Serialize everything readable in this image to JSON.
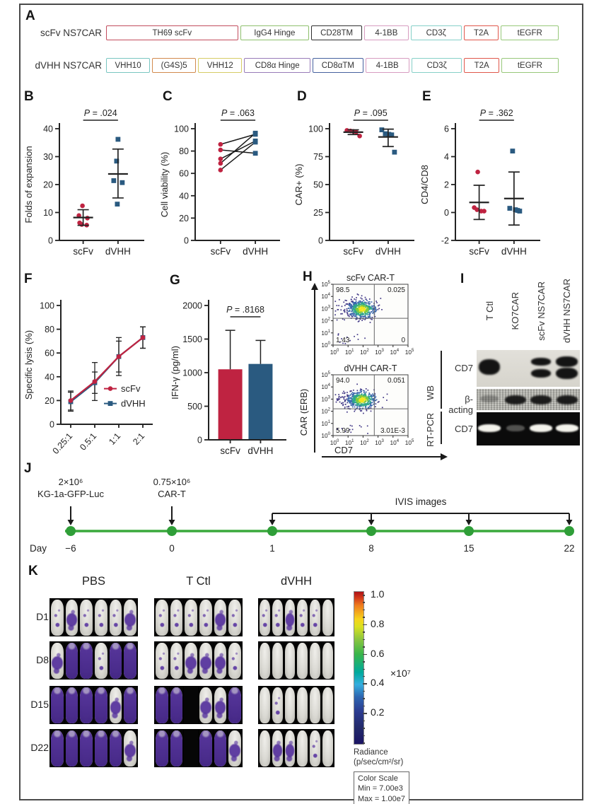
{
  "figure": {
    "panel_labels": {
      "A": "A",
      "B": "B",
      "C": "C",
      "D": "D",
      "E": "E",
      "F": "F",
      "G": "G",
      "H": "H",
      "I": "I",
      "J": "J",
      "K": "K"
    }
  },
  "panelA": {
    "rows": [
      {
        "name": "scFv NS7CAR",
        "segments": [
          {
            "label": "TH69 scFv",
            "color": "#c24d5e",
            "flex": 2.9
          },
          {
            "label": "IgG4 Hinge",
            "color": "#8ebf6d",
            "flex": 1.5
          },
          {
            "label": "CD28TM",
            "color": "#2f2f2f",
            "flex": 1.1
          },
          {
            "label": "4-1BB",
            "color": "#d79cc0",
            "flex": 0.95
          },
          {
            "label": "CD3ζ",
            "color": "#86d0c8",
            "flex": 1.1
          },
          {
            "label": "T2A",
            "color": "#e0574b",
            "flex": 0.75
          },
          {
            "label": "tEGFR",
            "color": "#97c87a",
            "flex": 1.25
          }
        ]
      },
      {
        "name": "dVHH NS7CAR",
        "segments": [
          {
            "label": "VHH10",
            "color": "#79c6c1",
            "flex": 0.95
          },
          {
            "label": "(G4S)5",
            "color": "#d28a4e",
            "flex": 0.95
          },
          {
            "label": "VHH12",
            "color": "#d6cc66",
            "flex": 0.95
          },
          {
            "label": "CD8α Hinge",
            "color": "#977bb8",
            "flex": 1.45
          },
          {
            "label": "CD8αTM",
            "color": "#46619f",
            "flex": 1.1
          },
          {
            "label": "4-1BB",
            "color": "#d79cc0",
            "flex": 0.95
          },
          {
            "label": "CD3ζ",
            "color": "#86d0c8",
            "flex": 1.1
          },
          {
            "label": "T2A",
            "color": "#e0574b",
            "flex": 0.75
          },
          {
            "label": "tEGFR",
            "color": "#97c87a",
            "flex": 1.25
          }
        ]
      }
    ]
  },
  "chart_data": [
    {
      "panel": "B",
      "type": "scatter",
      "ylabel": "Folds of expansion",
      "ylim": [
        0,
        40
      ],
      "yticks": [
        0,
        10,
        20,
        30,
        40
      ],
      "categories": [
        "scFv",
        "dVHH"
      ],
      "p_label": "P = .024",
      "series": [
        {
          "name": "scFv",
          "color": "#bf2341",
          "marker": "circle",
          "values": [
            12.4,
            8.9,
            8.0,
            6.3,
            5.7,
            5.5
          ],
          "mean": 8.2,
          "err": [
            5.4,
            11.0
          ]
        },
        {
          "name": "dVHH",
          "color": "#2a5a80",
          "marker": "square",
          "values": [
            36.2,
            28.4,
            21.4,
            20.7,
            13.0
          ],
          "mean": 23.8,
          "err": [
            15.2,
            32.7
          ]
        }
      ]
    },
    {
      "panel": "C",
      "type": "paired",
      "ylabel": "Cell viability (%)",
      "ylim": [
        0,
        100
      ],
      "yticks": [
        0,
        20,
        40,
        60,
        80,
        100
      ],
      "categories": [
        "scFv",
        "dVHH"
      ],
      "p_label": "P = .063",
      "colors": [
        "#bf2341",
        "#2a5a80"
      ],
      "pairs": [
        [
          86,
          95
        ],
        [
          81,
          78
        ],
        [
          73,
          89
        ],
        [
          69,
          96
        ],
        [
          63,
          88
        ]
      ]
    },
    {
      "panel": "D",
      "type": "scatter",
      "ylabel": "CAR+ (%)",
      "ylim": [
        0,
        100
      ],
      "yticks": [
        0,
        25,
        50,
        75,
        100
      ],
      "categories": [
        "scFv",
        "dVHH"
      ],
      "p_label": "P = .095",
      "series": [
        {
          "name": "scFv",
          "color": "#bf2341",
          "marker": "circle",
          "values": [
            98.5,
            98.0,
            97.6,
            97.0,
            93.5
          ],
          "mean": 96.9,
          "err": [
            94.8,
            99.0
          ]
        },
        {
          "name": "dVHH",
          "color": "#2a5a80",
          "marker": "square",
          "values": [
            99.0,
            95.5,
            95.0,
            94.5,
            79.0
          ],
          "mean": 92.6,
          "err": [
            84.0,
            99.6
          ]
        }
      ]
    },
    {
      "panel": "E",
      "type": "scatter",
      "ylabel": "CD4/CD8",
      "ylim": [
        -2,
        6
      ],
      "yticks": [
        -2,
        0,
        2,
        4,
        6
      ],
      "categories": [
        "scFv",
        "dVHH"
      ],
      "p_label": "P = .362",
      "series": [
        {
          "name": "scFv",
          "color": "#bf2341",
          "marker": "circle",
          "values": [
            2.9,
            0.35,
            0.2,
            0.1,
            0.1
          ],
          "mean": 0.72,
          "err": [
            -0.5,
            1.95
          ]
        },
        {
          "name": "dVHH",
          "color": "#2a5a80",
          "marker": "square",
          "values": [
            4.4,
            0.3,
            0.2,
            0.15,
            0.1
          ],
          "mean": 1.0,
          "err": [
            -0.9,
            2.9
          ]
        }
      ]
    },
    {
      "panel": "F",
      "type": "line",
      "ylabel": "Specific lysis (%)",
      "ylim": [
        0,
        100
      ],
      "yticks": [
        0,
        20,
        40,
        60,
        80,
        100
      ],
      "categories": [
        "0.25:1",
        "0.5:1",
        "1:1",
        "2:1"
      ],
      "series": [
        {
          "name": "scFv",
          "color": "#bf2341",
          "marker": "circle",
          "values": [
            20,
            36,
            57,
            73
          ],
          "err": [
            8,
            16,
            16,
            9
          ]
        },
        {
          "name": "dVHH",
          "color": "#2a5a80",
          "marker": "square",
          "values": [
            19,
            35,
            57,
            73
          ],
          "err": [
            8,
            9,
            13,
            9
          ]
        }
      ],
      "legend": [
        "scFv",
        "dVHH"
      ]
    },
    {
      "panel": "G",
      "type": "bar",
      "ylabel": "IFN-γ (pg/ml)",
      "ylim": [
        0,
        2000
      ],
      "yticks": [
        0,
        500,
        1000,
        1500,
        2000
      ],
      "categories": [
        "scFv",
        "dVHH"
      ],
      "p_label": "P = .8168",
      "values": [
        1050,
        1130
      ],
      "err_hi": [
        1630,
        1480
      ],
      "colors": [
        "#bf2341",
        "#2a5a80"
      ]
    }
  ],
  "panelH": {
    "plots": [
      {
        "title": "scFv CAR-T",
        "q_ul": "98.5",
        "q_ur": "0.025",
        "q_ll": "1.43",
        "q_lr": "0"
      },
      {
        "title": "dVHH CAR-T",
        "q_ul": "94.0",
        "q_ur": "0.051",
        "q_ll": "5.99",
        "q_lr": "3.01E-3"
      }
    ],
    "xlabel": "CD7",
    "ylabel": "CAR (ERB)",
    "exponents": [
      0,
      1,
      2,
      3,
      4,
      5
    ]
  },
  "panelI": {
    "lanes": [
      "T Ctl",
      "KO7CAR",
      "scFv NS7CAR",
      "dVHH NS7CAR"
    ],
    "group_wb": "WB",
    "group_rtpcr": "RT-PCR",
    "rows": [
      {
        "label": "CD7",
        "strip": "wb"
      },
      {
        "label": "β-acting",
        "strip": "actin"
      },
      {
        "label": "CD7",
        "strip": "rtpcr"
      }
    ],
    "bands": {
      "wb": [
        "strong",
        "none",
        "double",
        "thick"
      ],
      "actin": [
        "faint",
        "strong",
        "strong",
        "strong"
      ],
      "rtpcr": [
        "bright",
        "dim",
        "bright",
        "bright"
      ]
    }
  },
  "panelJ": {
    "day_label": "Day",
    "ticks": [
      "−6",
      "0",
      "1",
      "8",
      "15",
      "22"
    ],
    "events": [
      {
        "at": 0,
        "line1": "2×10⁶",
        "line2": "KG-1a-GFP-Luc"
      },
      {
        "at": 1,
        "line1": "0.75×10⁶",
        "line2": "CAR-T"
      }
    ],
    "ivis": {
      "label": "IVIS images",
      "from": 2,
      "to": 5
    }
  },
  "panelK": {
    "columns": [
      "PBS",
      "T Ctl",
      "dVHH"
    ],
    "rows": [
      "D1",
      "D8",
      "D15",
      "D22"
    ],
    "mice": {
      "PBS": [
        [
          1,
          2,
          1,
          1,
          1,
          2
        ],
        [
          2,
          3,
          3,
          1,
          3,
          3
        ],
        [
          3,
          3,
          3,
          3,
          2,
          3
        ],
        [
          3,
          3,
          3,
          3,
          3,
          2
        ]
      ],
      "T Ctl": [
        [
          1,
          1,
          1,
          1,
          2,
          1
        ],
        [
          1,
          1,
          2,
          2,
          2,
          1
        ],
        [
          3,
          3,
          "x",
          2,
          2,
          3
        ],
        [
          3,
          3,
          "x",
          3,
          3,
          2
        ]
      ],
      "dVHH": [
        [
          1,
          1,
          2,
          1,
          1,
          0
        ],
        [
          0,
          0,
          0,
          0,
          0,
          0
        ],
        [
          0,
          1,
          0,
          0,
          0,
          0
        ],
        [
          0,
          2,
          2,
          0,
          1,
          0
        ]
      ]
    },
    "colorbar": {
      "ticks": [
        "1.0",
        "0.8",
        "0.6",
        "0.4",
        "0.2"
      ],
      "multiplier": "×10⁷",
      "radiance": "Radiance",
      "units": "(p/sec/cm²/sr)",
      "box_title": "Color Scale",
      "box_min": "Min = 7.00e3",
      "box_max": "Max = 1.00e7"
    }
  }
}
